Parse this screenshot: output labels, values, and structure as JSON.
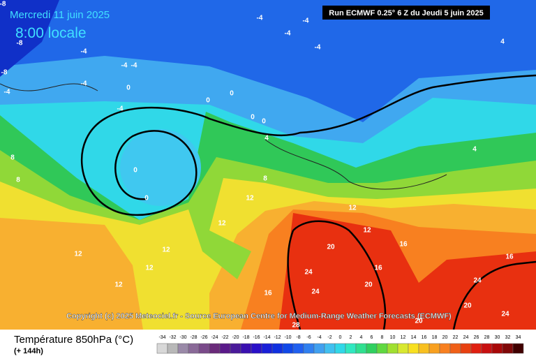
{
  "header": {
    "date": "Mercredi 11 juin 2025",
    "time": "8:00 locale",
    "run": "Run ECMWF 0.25° 6 Z du Jeudi 5 juin 2025"
  },
  "copyright": "Copyright (c) 2025 Meteociel.fr - Source European Centre for Medium-Range Weather Forecasts (ECMWF)",
  "legend": {
    "title": "Température 850hPa (°C)",
    "subtitle": "(+ 144h)",
    "labels": [
      -34,
      -32,
      -30,
      -28,
      -26,
      -24,
      -22,
      -20,
      -18,
      -16,
      -14,
      -12,
      -10,
      -8,
      -6,
      -4,
      -2,
      0,
      2,
      4,
      6,
      8,
      10,
      12,
      14,
      16,
      18,
      20,
      22,
      24,
      26,
      28,
      30,
      32,
      34
    ],
    "colors": [
      "#d8d8d8",
      "#b8b8b8",
      "#9a8aa8",
      "#8a6a98",
      "#7a4a8a",
      "#6a2a7a",
      "#5a1a8a",
      "#4a1a9a",
      "#3a10b0",
      "#2a10c8",
      "#1a20d8",
      "#1030e0",
      "#1048e8",
      "#2060f0",
      "#3080f0",
      "#40a0f0",
      "#40c0f0",
      "#30d8e8",
      "#30e8c0",
      "#30e090",
      "#30d060",
      "#60d840",
      "#a0e030",
      "#d8e830",
      "#f8e020",
      "#f8c020",
      "#f8a020",
      "#f88020",
      "#f06018",
      "#e84010",
      "#e02010",
      "#c81010",
      "#a80808",
      "#800808",
      "#400000"
    ]
  },
  "contour_labels": [
    -8,
    -8,
    -8,
    -4,
    -4,
    -4,
    -4,
    -4,
    -4,
    -4,
    -4,
    -4,
    -4,
    0,
    0,
    0,
    0,
    0,
    0,
    0,
    4,
    4,
    4,
    8,
    8,
    8,
    12,
    12,
    12,
    12,
    12,
    12,
    12,
    12,
    16,
    16,
    16,
    16,
    20,
    20,
    20,
    20,
    24,
    24,
    24,
    24,
    28
  ]
}
